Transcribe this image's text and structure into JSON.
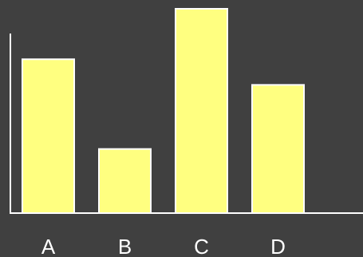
{
  "chart_data": {
    "type": "bar",
    "title": "",
    "xlabel": "",
    "ylabel": "",
    "categories": [
      "A",
      "B",
      "C",
      "D"
    ],
    "values": [
      192,
      80,
      255,
      160
    ],
    "ylim": [
      0,
      255
    ],
    "grid": false,
    "legend": "none"
  },
  "colors": {
    "background": "#404040",
    "bar_fill": "#ffff80",
    "bar_stroke": "#ffffff",
    "axis": "#ffffff",
    "label": "#ffffff"
  }
}
